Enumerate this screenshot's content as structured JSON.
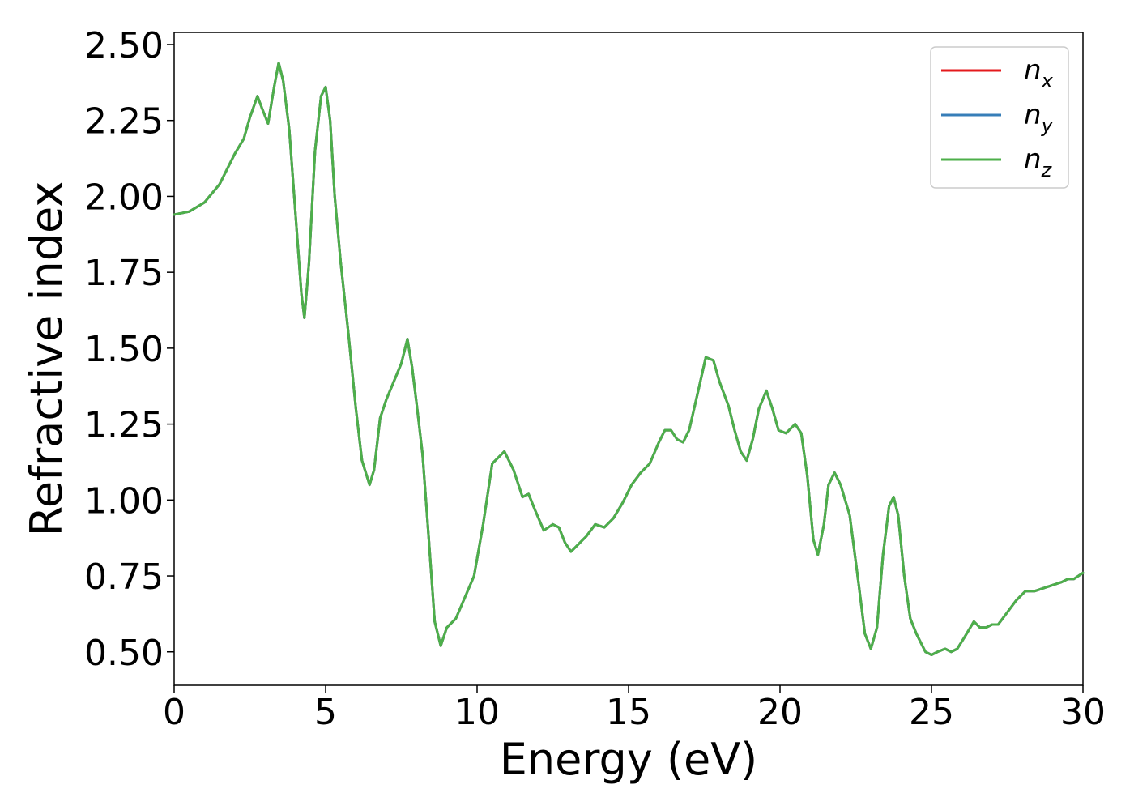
{
  "chart_data": {
    "type": "line",
    "xlabel": "Energy (eV)",
    "ylabel": "Refractive index",
    "xlim": [
      0,
      30
    ],
    "ylim": [
      0.39,
      2.54
    ],
    "xticks": [
      0,
      5,
      10,
      15,
      20,
      25,
      30
    ],
    "xtick_labels": [
      "0",
      "5",
      "10",
      "15",
      "20",
      "25",
      "30"
    ],
    "yticks": [
      0.5,
      0.75,
      1.0,
      1.25,
      1.5,
      1.75,
      2.0,
      2.25,
      2.5
    ],
    "ytick_labels": [
      "0.50",
      "0.75",
      "1.00",
      "1.25",
      "1.50",
      "1.75",
      "2.00",
      "2.25",
      "2.50"
    ],
    "grid": false,
    "legend_position": "top-right",
    "series": [
      {
        "name": "n_x",
        "legend_base": "n",
        "legend_sub": "x",
        "color": "#e41a1c",
        "x": [
          0,
          0.5,
          1.0,
          1.5,
          2.0,
          2.3,
          2.5,
          2.75,
          2.9,
          3.1,
          3.3,
          3.45,
          3.6,
          3.8,
          4.0,
          4.2,
          4.3,
          4.45,
          4.65,
          4.85,
          5.0,
          5.15,
          5.3,
          5.5,
          5.75,
          6.0,
          6.2,
          6.45,
          6.6,
          6.8,
          7.0,
          7.25,
          7.5,
          7.7,
          7.85,
          8.0,
          8.2,
          8.4,
          8.6,
          8.8,
          9.0,
          9.3,
          9.6,
          9.9,
          10.2,
          10.5,
          10.9,
          11.2,
          11.5,
          11.7,
          11.9,
          12.2,
          12.5,
          12.7,
          12.9,
          13.1,
          13.3,
          13.6,
          13.9,
          14.2,
          14.5,
          14.8,
          15.1,
          15.4,
          15.7,
          16.0,
          16.2,
          16.4,
          16.6,
          16.8,
          17.0,
          17.3,
          17.55,
          17.8,
          18.0,
          18.3,
          18.5,
          18.7,
          18.9,
          19.1,
          19.3,
          19.55,
          19.75,
          19.95,
          20.2,
          20.5,
          20.7,
          20.9,
          21.1,
          21.25,
          21.45,
          21.6,
          21.8,
          22.0,
          22.3,
          22.6,
          22.8,
          23.0,
          23.2,
          23.4,
          23.6,
          23.75,
          23.9,
          24.1,
          24.3,
          24.5,
          24.8,
          25.0,
          25.2,
          25.45,
          25.65,
          25.85,
          26.1,
          26.4,
          26.6,
          26.8,
          27.0,
          27.2,
          27.5,
          27.8,
          28.1,
          28.4,
          28.7,
          29.0,
          29.3,
          29.5,
          29.7,
          30.0
        ],
        "y": [
          1.94,
          1.95,
          1.98,
          2.04,
          2.14,
          2.19,
          2.26,
          2.33,
          2.29,
          2.24,
          2.36,
          2.44,
          2.38,
          2.22,
          1.95,
          1.68,
          1.6,
          1.78,
          2.15,
          2.33,
          2.36,
          2.25,
          2.0,
          1.78,
          1.55,
          1.3,
          1.13,
          1.05,
          1.1,
          1.27,
          1.33,
          1.39,
          1.45,
          1.53,
          1.44,
          1.32,
          1.15,
          0.88,
          0.6,
          0.52,
          0.58,
          0.61,
          0.68,
          0.75,
          0.92,
          1.12,
          1.16,
          1.1,
          1.01,
          1.02,
          0.97,
          0.9,
          0.92,
          0.91,
          0.86,
          0.83,
          0.85,
          0.88,
          0.92,
          0.91,
          0.94,
          0.99,
          1.05,
          1.09,
          1.12,
          1.19,
          1.23,
          1.23,
          1.2,
          1.19,
          1.23,
          1.36,
          1.47,
          1.46,
          1.39,
          1.31,
          1.23,
          1.16,
          1.13,
          1.2,
          1.3,
          1.36,
          1.3,
          1.23,
          1.22,
          1.25,
          1.22,
          1.08,
          0.87,
          0.82,
          0.92,
          1.05,
          1.09,
          1.05,
          0.95,
          0.72,
          0.56,
          0.51,
          0.58,
          0.82,
          0.98,
          1.01,
          0.95,
          0.75,
          0.61,
          0.56,
          0.5,
          0.49,
          0.5,
          0.51,
          0.5,
          0.51,
          0.55,
          0.6,
          0.58,
          0.58,
          0.59,
          0.59,
          0.63,
          0.67,
          0.7,
          0.7,
          0.71,
          0.72,
          0.73,
          0.74,
          0.74,
          0.76
        ]
      },
      {
        "name": "n_y",
        "legend_base": "n",
        "legend_sub": "y",
        "color": "#377eb8",
        "x": [
          0,
          0.5,
          1.0,
          1.5,
          2.0,
          2.3,
          2.5,
          2.75,
          2.9,
          3.1,
          3.3,
          3.45,
          3.6,
          3.8,
          4.0,
          4.2,
          4.3,
          4.45,
          4.65,
          4.85,
          5.0,
          5.15,
          5.3,
          5.5,
          5.75,
          6.0,
          6.2,
          6.45,
          6.6,
          6.8,
          7.0,
          7.25,
          7.5,
          7.7,
          7.85,
          8.0,
          8.2,
          8.4,
          8.6,
          8.8,
          9.0,
          9.3,
          9.6,
          9.9,
          10.2,
          10.5,
          10.9,
          11.2,
          11.5,
          11.7,
          11.9,
          12.2,
          12.5,
          12.7,
          12.9,
          13.1,
          13.3,
          13.6,
          13.9,
          14.2,
          14.5,
          14.8,
          15.1,
          15.4,
          15.7,
          16.0,
          16.2,
          16.4,
          16.6,
          16.8,
          17.0,
          17.3,
          17.55,
          17.8,
          18.0,
          18.3,
          18.5,
          18.7,
          18.9,
          19.1,
          19.3,
          19.55,
          19.75,
          19.95,
          20.2,
          20.5,
          20.7,
          20.9,
          21.1,
          21.25,
          21.45,
          21.6,
          21.8,
          22.0,
          22.3,
          22.6,
          22.8,
          23.0,
          23.2,
          23.4,
          23.6,
          23.75,
          23.9,
          24.1,
          24.3,
          24.5,
          24.8,
          25.0,
          25.2,
          25.45,
          25.65,
          25.85,
          26.1,
          26.4,
          26.6,
          26.8,
          27.0,
          27.2,
          27.5,
          27.8,
          28.1,
          28.4,
          28.7,
          29.0,
          29.3,
          29.5,
          29.7,
          30.0
        ],
        "y": [
          1.94,
          1.95,
          1.98,
          2.04,
          2.14,
          2.19,
          2.26,
          2.33,
          2.29,
          2.24,
          2.36,
          2.44,
          2.38,
          2.22,
          1.95,
          1.68,
          1.6,
          1.78,
          2.15,
          2.33,
          2.36,
          2.25,
          2.0,
          1.78,
          1.55,
          1.3,
          1.13,
          1.05,
          1.1,
          1.27,
          1.33,
          1.39,
          1.45,
          1.53,
          1.44,
          1.32,
          1.15,
          0.88,
          0.6,
          0.52,
          0.58,
          0.61,
          0.68,
          0.75,
          0.92,
          1.12,
          1.16,
          1.1,
          1.01,
          1.02,
          0.97,
          0.9,
          0.92,
          0.91,
          0.86,
          0.83,
          0.85,
          0.88,
          0.92,
          0.91,
          0.94,
          0.99,
          1.05,
          1.09,
          1.12,
          1.19,
          1.23,
          1.23,
          1.2,
          1.19,
          1.23,
          1.36,
          1.47,
          1.46,
          1.39,
          1.31,
          1.23,
          1.16,
          1.13,
          1.2,
          1.3,
          1.36,
          1.3,
          1.23,
          1.22,
          1.25,
          1.22,
          1.08,
          0.87,
          0.82,
          0.92,
          1.05,
          1.09,
          1.05,
          0.95,
          0.72,
          0.56,
          0.51,
          0.58,
          0.82,
          0.98,
          1.01,
          0.95,
          0.75,
          0.61,
          0.56,
          0.5,
          0.49,
          0.5,
          0.51,
          0.5,
          0.51,
          0.55,
          0.6,
          0.58,
          0.58,
          0.59,
          0.59,
          0.63,
          0.67,
          0.7,
          0.7,
          0.71,
          0.72,
          0.73,
          0.74,
          0.74,
          0.76
        ]
      },
      {
        "name": "n_z",
        "legend_base": "n",
        "legend_sub": "z",
        "color": "#4daf4a",
        "x": [
          0,
          0.5,
          1.0,
          1.5,
          2.0,
          2.3,
          2.5,
          2.75,
          2.9,
          3.1,
          3.3,
          3.45,
          3.6,
          3.8,
          4.0,
          4.2,
          4.3,
          4.45,
          4.65,
          4.85,
          5.0,
          5.15,
          5.3,
          5.5,
          5.75,
          6.0,
          6.2,
          6.45,
          6.6,
          6.8,
          7.0,
          7.25,
          7.5,
          7.7,
          7.85,
          8.0,
          8.2,
          8.4,
          8.6,
          8.8,
          9.0,
          9.3,
          9.6,
          9.9,
          10.2,
          10.5,
          10.9,
          11.2,
          11.5,
          11.7,
          11.9,
          12.2,
          12.5,
          12.7,
          12.9,
          13.1,
          13.3,
          13.6,
          13.9,
          14.2,
          14.5,
          14.8,
          15.1,
          15.4,
          15.7,
          16.0,
          16.2,
          16.4,
          16.6,
          16.8,
          17.0,
          17.3,
          17.55,
          17.8,
          18.0,
          18.3,
          18.5,
          18.7,
          18.9,
          19.1,
          19.3,
          19.55,
          19.75,
          19.95,
          20.2,
          20.5,
          20.7,
          20.9,
          21.1,
          21.25,
          21.45,
          21.6,
          21.8,
          22.0,
          22.3,
          22.6,
          22.8,
          23.0,
          23.2,
          23.4,
          23.6,
          23.75,
          23.9,
          24.1,
          24.3,
          24.5,
          24.8,
          25.0,
          25.2,
          25.45,
          25.65,
          25.85,
          26.1,
          26.4,
          26.6,
          26.8,
          27.0,
          27.2,
          27.5,
          27.8,
          28.1,
          28.4,
          28.7,
          29.0,
          29.3,
          29.5,
          29.7,
          30.0
        ],
        "y": [
          1.94,
          1.95,
          1.98,
          2.04,
          2.14,
          2.19,
          2.26,
          2.33,
          2.29,
          2.24,
          2.36,
          2.44,
          2.38,
          2.22,
          1.95,
          1.68,
          1.6,
          1.78,
          2.15,
          2.33,
          2.36,
          2.25,
          2.0,
          1.78,
          1.55,
          1.3,
          1.13,
          1.05,
          1.1,
          1.27,
          1.33,
          1.39,
          1.45,
          1.53,
          1.44,
          1.32,
          1.15,
          0.88,
          0.6,
          0.52,
          0.58,
          0.61,
          0.68,
          0.75,
          0.92,
          1.12,
          1.16,
          1.1,
          1.01,
          1.02,
          0.97,
          0.9,
          0.92,
          0.91,
          0.86,
          0.83,
          0.85,
          0.88,
          0.92,
          0.91,
          0.94,
          0.99,
          1.05,
          1.09,
          1.12,
          1.19,
          1.23,
          1.23,
          1.2,
          1.19,
          1.23,
          1.36,
          1.47,
          1.46,
          1.39,
          1.31,
          1.23,
          1.16,
          1.13,
          1.2,
          1.3,
          1.36,
          1.3,
          1.23,
          1.22,
          1.25,
          1.22,
          1.08,
          0.87,
          0.82,
          0.92,
          1.05,
          1.09,
          1.05,
          0.95,
          0.72,
          0.56,
          0.51,
          0.58,
          0.82,
          0.98,
          1.01,
          0.95,
          0.75,
          0.61,
          0.56,
          0.5,
          0.49,
          0.5,
          0.51,
          0.5,
          0.51,
          0.55,
          0.6,
          0.58,
          0.58,
          0.59,
          0.59,
          0.63,
          0.67,
          0.7,
          0.7,
          0.71,
          0.72,
          0.73,
          0.74,
          0.74,
          0.76
        ]
      }
    ]
  }
}
